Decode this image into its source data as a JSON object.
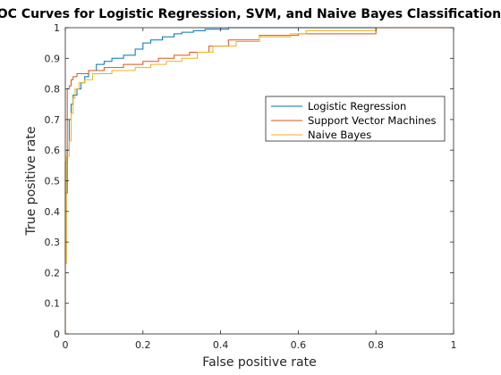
{
  "chart_data": {
    "type": "line",
    "title": "ROC Curves for Logistic Regression, SVM, and Naive Bayes Classification",
    "xlabel": "False positive rate",
    "ylabel": "True positive rate",
    "xlim": [
      0,
      1
    ],
    "ylim": [
      0,
      1
    ],
    "xticks": [
      0,
      0.2,
      0.4,
      0.6,
      0.8,
      1
    ],
    "xtick_labels": [
      "0",
      "0.2",
      "0.4",
      "0.6",
      "0.8",
      "1"
    ],
    "yticks": [
      0,
      0.1,
      0.2,
      0.3,
      0.4,
      0.5,
      0.6,
      0.7,
      0.8,
      0.9,
      1
    ],
    "ytick_labels": [
      "0",
      "0.1",
      "0.2",
      "0.3",
      "0.4",
      "0.5",
      "0.6",
      "0.7",
      "0.8",
      "0.9",
      "1"
    ],
    "grid": false,
    "legend_position": "right",
    "series": [
      {
        "name": "Logistic Regression",
        "color": "#0072BD",
        "x": [
          0,
          0,
          0.005,
          0.005,
          0.01,
          0.01,
          0.015,
          0.015,
          0.02,
          0.02,
          0.03,
          0.03,
          0.04,
          0.04,
          0.05,
          0.05,
          0.06,
          0.06,
          0.08,
          0.08,
          0.1,
          0.1,
          0.12,
          0.12,
          0.15,
          0.15,
          0.18,
          0.18,
          0.2,
          0.2,
          0.22,
          0.22,
          0.25,
          0.25,
          0.28,
          0.28,
          0.3,
          0.3,
          0.33,
          0.33,
          0.36,
          0.36,
          0.42,
          0.42,
          1
        ],
        "y": [
          0,
          0.46,
          0.46,
          0.6,
          0.6,
          0.7,
          0.7,
          0.75,
          0.75,
          0.78,
          0.78,
          0.8,
          0.8,
          0.82,
          0.82,
          0.84,
          0.84,
          0.86,
          0.86,
          0.88,
          0.88,
          0.89,
          0.89,
          0.9,
          0.9,
          0.91,
          0.91,
          0.93,
          0.93,
          0.95,
          0.95,
          0.96,
          0.96,
          0.97,
          0.97,
          0.98,
          0.98,
          0.985,
          0.985,
          0.99,
          0.99,
          0.995,
          0.995,
          1,
          1
        ]
      },
      {
        "name": "Support Vector Machines",
        "color": "#D95319",
        "x": [
          0,
          0,
          0.005,
          0.005,
          0.01,
          0.01,
          0.015,
          0.015,
          0.02,
          0.02,
          0.03,
          0.03,
          0.06,
          0.06,
          0.1,
          0.1,
          0.15,
          0.15,
          0.2,
          0.2,
          0.24,
          0.24,
          0.28,
          0.28,
          0.32,
          0.32,
          0.37,
          0.37,
          0.42,
          0.42,
          0.5,
          0.5,
          0.6,
          0.6,
          0.8,
          0.8,
          1
        ],
        "y": [
          0,
          0.56,
          0.56,
          0.8,
          0.8,
          0.81,
          0.81,
          0.83,
          0.83,
          0.84,
          0.84,
          0.85,
          0.85,
          0.86,
          0.86,
          0.87,
          0.87,
          0.88,
          0.88,
          0.89,
          0.89,
          0.9,
          0.9,
          0.91,
          0.91,
          0.92,
          0.92,
          0.94,
          0.94,
          0.96,
          0.96,
          0.975,
          0.975,
          0.98,
          0.98,
          1,
          1
        ]
      },
      {
        "name": "Naive Bayes",
        "color": "#EDB120",
        "x": [
          0,
          0,
          0.003,
          0.003,
          0.01,
          0.01,
          0.015,
          0.015,
          0.02,
          0.02,
          0.025,
          0.025,
          0.035,
          0.035,
          0.05,
          0.05,
          0.07,
          0.07,
          0.12,
          0.12,
          0.18,
          0.18,
          0.22,
          0.22,
          0.26,
          0.26,
          0.3,
          0.3,
          0.34,
          0.34,
          0.38,
          0.38,
          0.44,
          0.44,
          0.5,
          0.5,
          0.58,
          0.58,
          0.62,
          0.62,
          0.8,
          0.8,
          1
        ],
        "y": [
          0,
          0.23,
          0.23,
          0.58,
          0.58,
          0.63,
          0.63,
          0.72,
          0.72,
          0.77,
          0.77,
          0.8,
          0.8,
          0.82,
          0.82,
          0.83,
          0.83,
          0.85,
          0.85,
          0.86,
          0.86,
          0.87,
          0.87,
          0.88,
          0.88,
          0.89,
          0.89,
          0.9,
          0.9,
          0.92,
          0.92,
          0.94,
          0.94,
          0.955,
          0.955,
          0.97,
          0.97,
          0.98,
          0.98,
          0.99,
          0.99,
          1,
          1
        ]
      }
    ]
  }
}
